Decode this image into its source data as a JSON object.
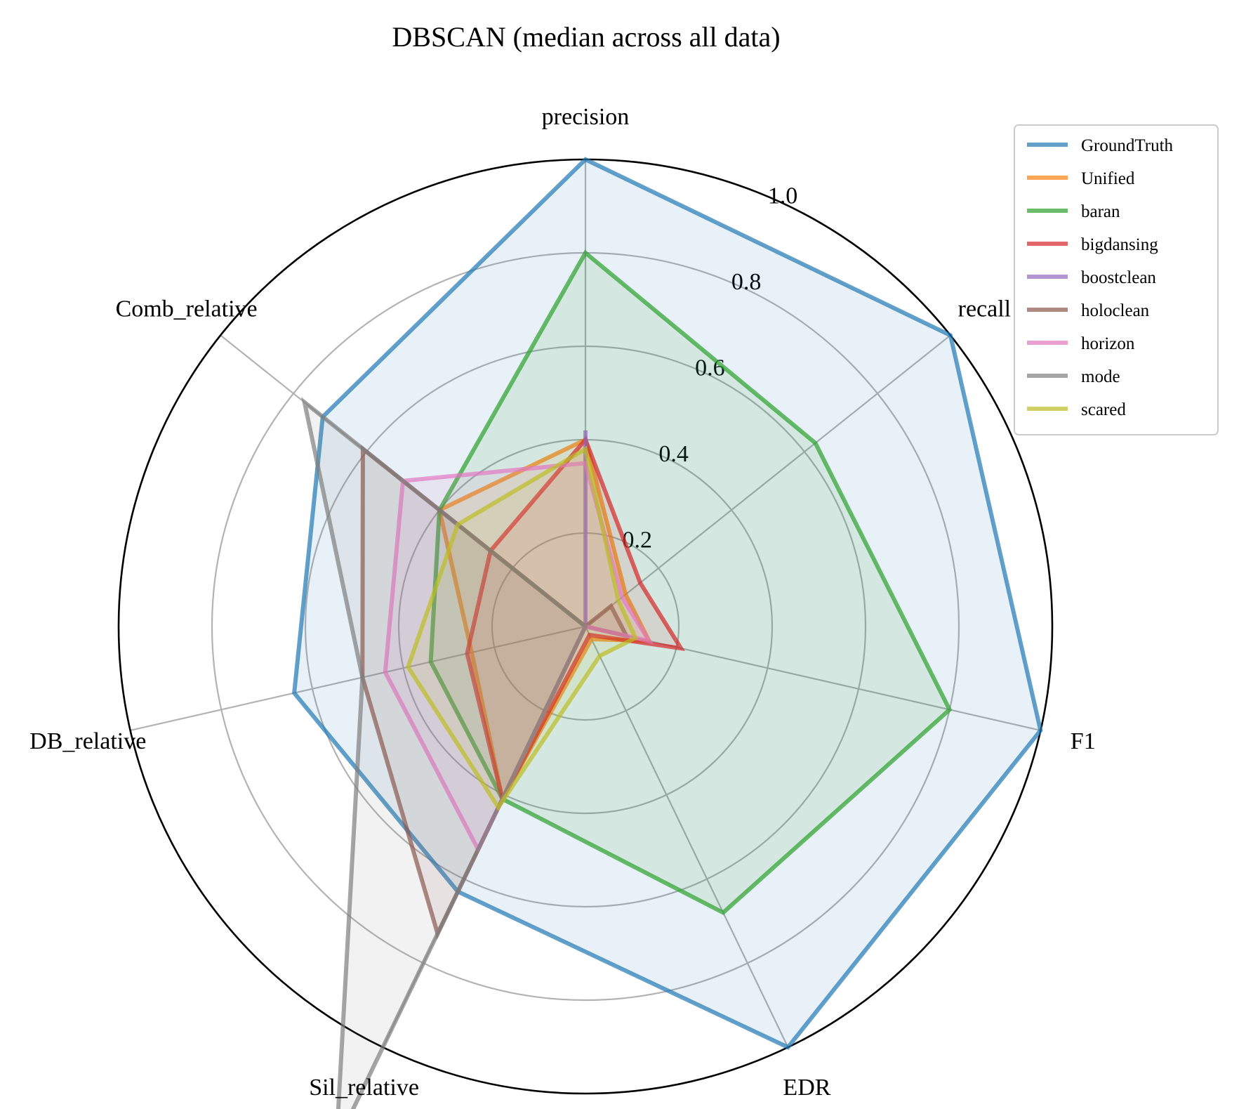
{
  "chart_data": {
    "type": "radar",
    "title": "DBSCAN (median across all data)",
    "axes": [
      "precision",
      "recall",
      "F1",
      "EDR",
      "Sil_relative",
      "DB_relative",
      "Comb_relative"
    ],
    "r_ticks": [
      0.2,
      0.4,
      0.6,
      0.8,
      1.0
    ],
    "r_tick_labels": [
      "0.2",
      "0.4",
      "0.6",
      "0.8",
      "1.0"
    ],
    "rlim": [
      0,
      1.0
    ],
    "grid": true,
    "legend_position": "top-right",
    "series": [
      {
        "name": "GroundTruth",
        "color": "#1f77b4",
        "values": [
          1.0,
          1.0,
          1.0,
          1.0,
          0.63,
          0.64,
          0.72
        ],
        "fill": true
      },
      {
        "name": "Unified",
        "color": "#ff7f0e",
        "values": [
          0.4,
          0.11,
          0.14,
          0.03,
          0.41,
          0.25,
          0.4
        ],
        "fill": true
      },
      {
        "name": "baran",
        "color": "#2ca02c",
        "values": [
          0.8,
          0.63,
          0.8,
          0.68,
          0.41,
          0.34,
          0.4
        ],
        "fill": true
      },
      {
        "name": "bigdansing",
        "color": "#d62728",
        "values": [
          0.4,
          0.15,
          0.21,
          0.02,
          0.41,
          0.26,
          0.26
        ],
        "fill": true
      },
      {
        "name": "boostclean",
        "color": "#9467bd",
        "values": [
          0.42,
          0.0,
          0.0,
          0.0,
          0.0,
          0.0,
          0.0
        ],
        "fill": true
      },
      {
        "name": "holoclean",
        "color": "#8c564b",
        "values": [
          0.0,
          0.07,
          0.09,
          0.0,
          0.73,
          0.49,
          0.61
        ],
        "fill": true
      },
      {
        "name": "horizon",
        "color": "#e377c2",
        "values": [
          0.35,
          0.1,
          0.14,
          0.0,
          0.53,
          0.44,
          0.5
        ],
        "fill": true
      },
      {
        "name": "mode",
        "color": "#7f7f7f",
        "values": [
          0.0,
          0.0,
          0.0,
          0.0,
          1.23,
          0.49,
          0.77
        ],
        "fill": true
      },
      {
        "name": "scared",
        "color": "#bcbd22",
        "values": [
          0.38,
          0.09,
          0.11,
          0.07,
          0.43,
          0.39,
          0.35
        ],
        "fill": true
      }
    ]
  }
}
